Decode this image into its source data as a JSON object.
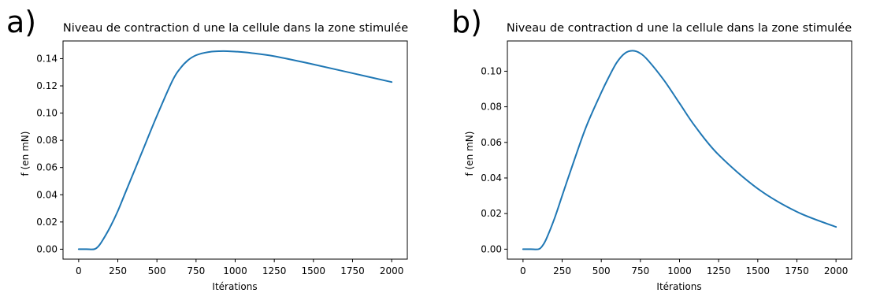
{
  "chart_data": [
    {
      "panel_label": "a)",
      "type": "line",
      "title": "Niveau de contraction d une la cellule dans la zone stimulée",
      "xlabel": "Itérations",
      "ylabel": "f (en mN)",
      "xlim": [
        -100,
        2100
      ],
      "ylim": [
        -0.0073,
        0.153
      ],
      "xticks": [
        0,
        250,
        500,
        750,
        1000,
        1250,
        1500,
        1750,
        2000
      ],
      "xtick_labels": [
        "0",
        "250",
        "500",
        "750",
        "1000",
        "1250",
        "1500",
        "1750",
        "2000"
      ],
      "yticks": [
        0.0,
        0.02,
        0.04,
        0.06,
        0.08,
        0.1,
        0.12,
        0.14
      ],
      "ytick_labels": [
        "0.00",
        "0.02",
        "0.04",
        "0.06",
        "0.08",
        "0.10",
        "0.12",
        "0.14"
      ],
      "grid": false,
      "series_color": "#1f77b4",
      "x": [
        0,
        50,
        100,
        125,
        150,
        200,
        250,
        300,
        400,
        500,
        600,
        650,
        700,
        750,
        800,
        850,
        900,
        950,
        1000,
        1100,
        1250,
        1500,
        1750,
        2000
      ],
      "y": [
        0.0,
        0.0,
        0.0,
        0.002,
        0.006,
        0.016,
        0.028,
        0.042,
        0.07,
        0.098,
        0.124,
        0.133,
        0.139,
        0.1425,
        0.1442,
        0.1452,
        0.1455,
        0.1455,
        0.1452,
        0.1442,
        0.1418,
        0.1358,
        0.1293,
        0.1228
      ]
    },
    {
      "panel_label": "b)",
      "type": "line",
      "title": "Niveau de contraction d une la cellule dans la zone stimulée",
      "xlabel": "Itérations",
      "ylabel": "f (en mN)",
      "xlim": [
        -100,
        2100
      ],
      "ylim": [
        -0.0056,
        0.117
      ],
      "xticks": [
        0,
        250,
        500,
        750,
        1000,
        1250,
        1500,
        1750,
        2000
      ],
      "xtick_labels": [
        "0",
        "250",
        "500",
        "750",
        "1000",
        "1250",
        "1500",
        "1750",
        "2000"
      ],
      "yticks": [
        0.0,
        0.02,
        0.04,
        0.06,
        0.08,
        0.1
      ],
      "ytick_labels": [
        "0.00",
        "0.02",
        "0.04",
        "0.06",
        "0.08",
        "0.10"
      ],
      "grid": false,
      "series_color": "#1f77b4",
      "x": [
        0,
        50,
        100,
        125,
        150,
        200,
        250,
        300,
        400,
        500,
        550,
        600,
        650,
        700,
        750,
        800,
        900,
        1000,
        1100,
        1250,
        1500,
        1750,
        2000
      ],
      "y": [
        0.0,
        0.0,
        0.0,
        0.002,
        0.006,
        0.017,
        0.03,
        0.043,
        0.068,
        0.088,
        0.097,
        0.105,
        0.11,
        0.1115,
        0.11,
        0.106,
        0.095,
        0.082,
        0.069,
        0.053,
        0.034,
        0.021,
        0.0125
      ]
    }
  ]
}
